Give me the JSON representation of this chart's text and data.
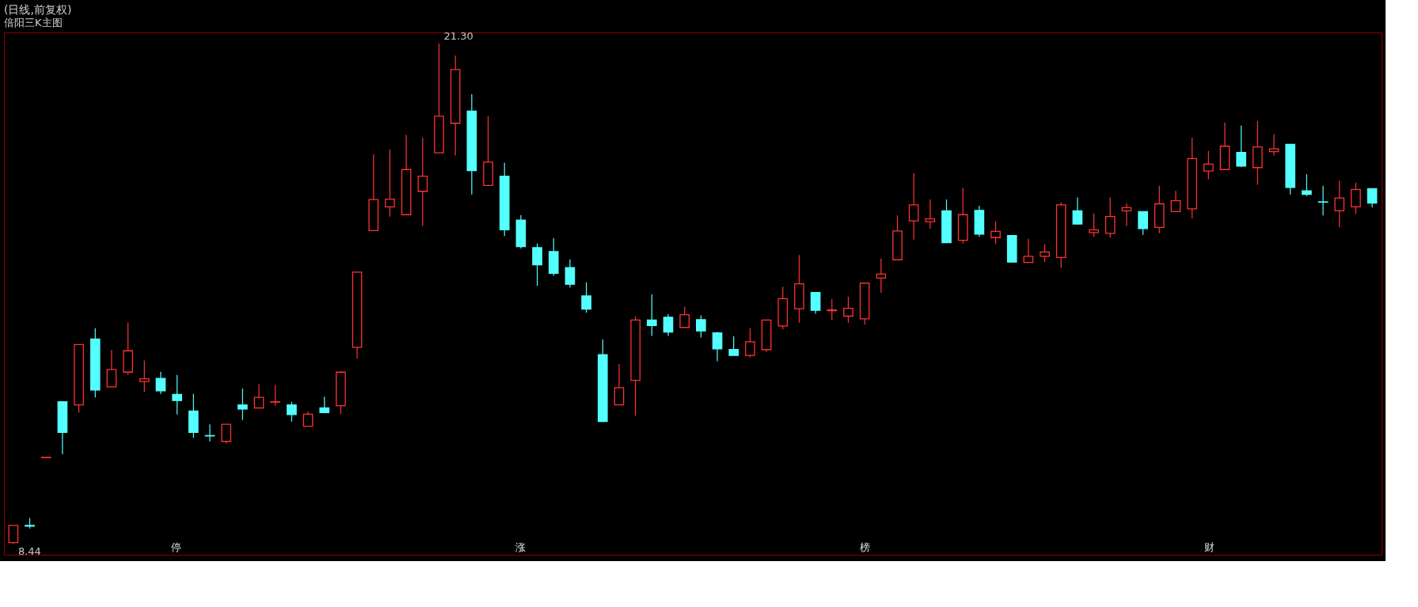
{
  "chart_data": {
    "type": "candlestick",
    "title": "(日线,前复权)",
    "subtitle": "倍阳三K主图",
    "categories": [
      null,
      null,
      null,
      null,
      null,
      null,
      null,
      null,
      null,
      null,
      null,
      null,
      null,
      null,
      null,
      null,
      null,
      null,
      null,
      null,
      null,
      null,
      null,
      null,
      null,
      null,
      null,
      null,
      null,
      null,
      null,
      null,
      null,
      null,
      null,
      null,
      null,
      null,
      null,
      null,
      null,
      null,
      null,
      null,
      null,
      null,
      null,
      null,
      null,
      null,
      null,
      null,
      null,
      null,
      null,
      null,
      null,
      null,
      null,
      null,
      null,
      null,
      null,
      null,
      null,
      null,
      null,
      null,
      null,
      null,
      null,
      null,
      null,
      null,
      null,
      null,
      null,
      null,
      null,
      null,
      null,
      null,
      null,
      null
    ],
    "ohlc": [
      [
        8.47,
        8.91,
        8.44,
        8.91
      ],
      [
        8.91,
        9.1,
        8.83,
        8.89
      ],
      [
        10.65,
        10.66,
        10.65,
        10.66
      ],
      [
        12.09,
        12.09,
        10.74,
        11.3
      ],
      [
        12.01,
        13.56,
        11.81,
        13.56
      ],
      [
        13.7,
        13.98,
        12.2,
        12.39
      ],
      [
        12.47,
        13.42,
        12.47,
        12.92
      ],
      [
        12.85,
        14.12,
        12.78,
        13.4
      ],
      [
        12.61,
        13.15,
        12.34,
        12.68
      ],
      [
        12.69,
        12.86,
        12.29,
        12.37
      ],
      [
        12.28,
        12.78,
        11.76,
        12.12
      ],
      [
        11.85,
        12.29,
        11.16,
        11.3
      ],
      [
        11.22,
        11.51,
        11.07,
        11.21
      ],
      [
        11.07,
        11.51,
        11.02,
        11.51
      ],
      [
        12.01,
        12.43,
        11.62,
        11.9
      ],
      [
        11.93,
        12.54,
        11.93,
        12.2
      ],
      [
        12.08,
        12.52,
        11.99,
        12.09
      ],
      [
        12.01,
        12.09,
        11.58,
        11.76
      ],
      [
        11.46,
        11.84,
        11.46,
        11.77
      ],
      [
        11.93,
        12.22,
        11.8,
        11.81
      ],
      [
        11.99,
        12.87,
        11.77,
        12.85
      ],
      [
        13.49,
        15.42,
        13.2,
        15.42
      ],
      [
        16.49,
        18.45,
        16.49,
        17.29
      ],
      [
        17.1,
        18.58,
        16.85,
        17.3
      ],
      [
        16.9,
        18.95,
        16.9,
        18.06
      ],
      [
        17.5,
        18.88,
        16.61,
        17.89
      ],
      [
        18.49,
        21.3,
        18.49,
        19.43
      ],
      [
        19.25,
        20.99,
        18.42,
        20.63
      ],
      [
        19.56,
        20.0,
        17.42,
        18.03
      ],
      [
        17.65,
        19.43,
        17.65,
        18.25
      ],
      [
        17.89,
        18.23,
        16.35,
        16.51
      ],
      [
        16.76,
        16.89,
        16.03,
        16.08
      ],
      [
        16.05,
        16.16,
        15.07,
        15.61
      ],
      [
        15.95,
        16.3,
        15.33,
        15.39
      ],
      [
        15.54,
        15.75,
        15.03,
        15.11
      ],
      [
        14.81,
        15.16,
        14.38,
        14.47
      ],
      [
        13.3,
        13.69,
        11.57,
        11.58
      ],
      [
        12.01,
        13.06,
        12.01,
        12.45
      ],
      [
        12.64,
        14.29,
        11.73,
        14.19
      ],
      [
        14.19,
        14.85,
        13.78,
        14.05
      ],
      [
        14.26,
        14.34,
        13.78,
        13.88
      ],
      [
        14.0,
        14.53,
        14.0,
        14.33
      ],
      [
        14.2,
        14.31,
        13.74,
        13.91
      ],
      [
        13.86,
        13.89,
        13.13,
        13.45
      ],
      [
        13.43,
        13.77,
        13.28,
        13.28
      ],
      [
        13.28,
        13.98,
        13.23,
        13.63
      ],
      [
        13.43,
        14.19,
        13.37,
        14.19
      ],
      [
        14.04,
        15.05,
        13.95,
        14.74
      ],
      [
        14.48,
        15.86,
        14.12,
        15.12
      ],
      [
        14.9,
        14.9,
        14.35,
        14.44
      ],
      [
        14.43,
        14.73,
        14.2,
        14.45
      ],
      [
        14.29,
        14.79,
        14.12,
        14.49
      ],
      [
        14.22,
        15.15,
        14.07,
        15.14
      ],
      [
        15.27,
        15.77,
        14.89,
        15.37
      ],
      [
        15.74,
        16.88,
        15.74,
        16.48
      ],
      [
        16.74,
        17.97,
        16.26,
        17.15
      ],
      [
        16.72,
        17.29,
        16.54,
        16.79
      ],
      [
        17.0,
        17.29,
        16.18,
        16.18
      ],
      [
        16.24,
        17.59,
        16.16,
        16.9
      ],
      [
        17.01,
        17.13,
        16.33,
        16.4
      ],
      [
        16.31,
        16.73,
        16.15,
        16.47
      ],
      [
        16.36,
        16.36,
        15.67,
        15.68
      ],
      [
        15.67,
        16.28,
        15.67,
        15.83
      ],
      [
        15.83,
        16.14,
        15.68,
        15.94
      ],
      [
        15.8,
        17.22,
        15.53,
        17.15
      ],
      [
        17.0,
        17.34,
        16.65,
        16.66
      ],
      [
        16.44,
        16.93,
        16.33,
        16.51
      ],
      [
        16.42,
        17.34,
        16.31,
        16.85
      ],
      [
        17.0,
        17.19,
        16.61,
        17.08
      ],
      [
        16.98,
        16.98,
        16.38,
        16.54
      ],
      [
        16.57,
        17.64,
        16.42,
        17.18
      ],
      [
        16.98,
        17.51,
        16.98,
        17.26
      ],
      [
        17.05,
        18.88,
        16.8,
        18.34
      ],
      [
        18.02,
        18.54,
        17.81,
        18.2
      ],
      [
        18.06,
        19.27,
        18.06,
        18.66
      ],
      [
        18.5,
        19.19,
        18.12,
        18.15
      ],
      [
        18.11,
        19.31,
        17.67,
        18.64
      ],
      [
        18.52,
        18.97,
        18.42,
        18.59
      ],
      [
        18.71,
        18.71,
        17.42,
        17.6
      ],
      [
        17.51,
        17.94,
        17.38,
        17.42
      ],
      [
        17.23,
        17.64,
        16.88,
        17.22
      ],
      [
        17.0,
        17.77,
        16.58,
        17.33
      ],
      [
        17.1,
        17.72,
        16.92,
        17.55
      ],
      [
        17.57,
        17.57,
        17.09,
        17.2
      ]
    ],
    "colors": [
      "#ff3232",
      "#54ffff",
      "#ff3232",
      "#54ffff",
      "#ff3232",
      "#54ffff",
      "#ff3232",
      "#ff3232",
      "#ff3232",
      "#54ffff",
      "#54ffff",
      "#54ffff",
      "#54ffff",
      "#ff3232",
      "#54ffff",
      "#ff3232",
      "#ff3232",
      "#54ffff",
      "#ff3232",
      "#54ffff",
      "#ff3232",
      "#ff3232",
      "#ff3232",
      "#ff3232",
      "#ff3232",
      "#ff3232",
      "#ff3232",
      "#ff3232",
      "#54ffff",
      "#ff3232",
      "#54ffff",
      "#54ffff",
      "#54ffff",
      "#54ffff",
      "#54ffff",
      "#54ffff",
      "#54ffff",
      "#ff3232",
      "#ff3232",
      "#54ffff",
      "#54ffff",
      "#ff3232",
      "#54ffff",
      "#54ffff",
      "#54ffff",
      "#ff3232",
      "#ff3232",
      "#ff3232",
      "#ff3232",
      "#54ffff",
      "#ff3232",
      "#ff3232",
      "#ff3232",
      "#ff3232",
      "#ff3232",
      "#ff3232",
      "#ff3232",
      "#54ffff",
      "#ff3232",
      "#54ffff",
      "#ff3232",
      "#54ffff",
      "#ff3232",
      "#ff3232",
      "#ff3232",
      "#54ffff",
      "#ff3232",
      "#ff3232",
      "#ff3232",
      "#54ffff",
      "#ff3232",
      "#ff3232",
      "#ff3232",
      "#ff3232",
      "#ff3232",
      "#54ffff",
      "#ff3232",
      "#ff3232",
      "#54ffff",
      "#54ffff",
      "#54ffff",
      "#ff3232",
      "#ff3232",
      "#54ffff"
    ],
    "annotations": [
      "21.30",
      "8.44",
      "停",
      "涨",
      "榜",
      "财"
    ]
  }
}
